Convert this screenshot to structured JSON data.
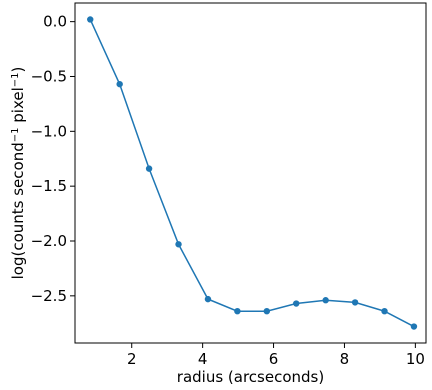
{
  "chart_data": {
    "type": "line",
    "title": "",
    "xlabel": "radius (arcseconds)",
    "ylabel_parts": [
      "log(counts second",
      "−1",
      " pixel",
      "−1",
      ")"
    ],
    "xlim": [
      0.4,
      10.3
    ],
    "ylim": [
      -2.93,
      0.17
    ],
    "xticks": [
      2,
      4,
      6,
      8,
      10
    ],
    "xtick_labels": [
      "2",
      "4",
      "6",
      "8",
      "10"
    ],
    "yticks": [
      0.0,
      -0.5,
      -1.0,
      -1.5,
      -2.0,
      -2.5
    ],
    "ytick_labels": [
      "0.0",
      "−0.5",
      "−1.0",
      "−1.5",
      "−2.0",
      "−2.5"
    ],
    "grid": false,
    "series": [
      {
        "color": "#1f77b4",
        "marker": "circle",
        "x": [
          0.83,
          1.66,
          2.49,
          3.32,
          4.15,
          4.98,
          5.81,
          6.64,
          7.47,
          8.3,
          9.13,
          9.96
        ],
        "y": [
          0.02,
          -0.57,
          -1.34,
          -2.03,
          -2.53,
          -2.64,
          -2.64,
          -2.57,
          -2.54,
          -2.56,
          -2.64,
          -2.78
        ]
      }
    ]
  }
}
